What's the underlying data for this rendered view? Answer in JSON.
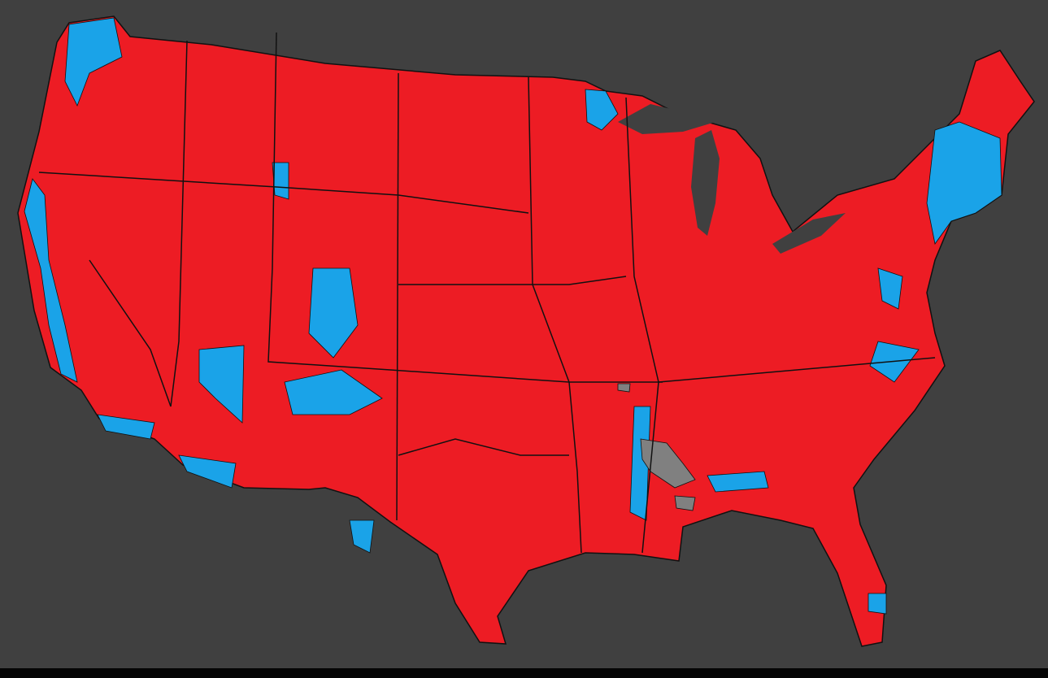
{
  "map": {
    "background": "#404040",
    "land_color": "#ed1c24",
    "alt_color": "#1aa3e8",
    "other_color": "#808080",
    "border_color": "#111111",
    "footer_color": "#050505"
  }
}
